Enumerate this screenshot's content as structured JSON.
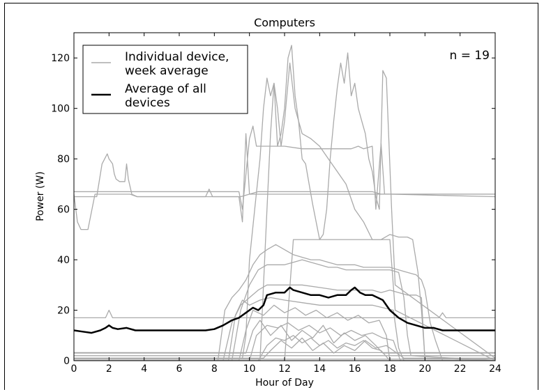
{
  "chart_data": {
    "type": "line",
    "title": "Computers",
    "xlabel": "Hour of Day",
    "ylabel": "Power (W)",
    "xlim": [
      0,
      24
    ],
    "ylim": [
      0,
      130
    ],
    "xticks": [
      0,
      2,
      4,
      6,
      8,
      10,
      12,
      14,
      16,
      18,
      20,
      22,
      24
    ],
    "yticks": [
      0,
      20,
      40,
      60,
      80,
      100,
      120
    ],
    "grid": false,
    "legend_position": "top-left",
    "annotation": "n = 19",
    "legend": [
      {
        "label_lines": [
          "Individual device,",
          " week average"
        ],
        "color": "#aaaaaa",
        "width": 1.5
      },
      {
        "label_lines": [
          "Average of all",
          " devices"
        ],
        "color": "#000000",
        "width": 2.5
      }
    ],
    "individual_color": "#aaaaaa",
    "average_color": "#000000",
    "series": [
      {
        "x": [
          0,
          0.3,
          0.5,
          0.9,
          1.1,
          1.3,
          1.6,
          1.9,
          2.0,
          2.1,
          2.2,
          2.3,
          2.4,
          2.6,
          2.9,
          3.0,
          3.1,
          3.3,
          3.6,
          7.5,
          8.0,
          9.0,
          9.4,
          9.6,
          9.8,
          10.0,
          10.5,
          12,
          14,
          16,
          17.0,
          17.3,
          17.5,
          17.8,
          22,
          24
        ],
        "y": [
          65,
          65,
          65,
          65,
          65,
          65,
          78,
          82,
          80,
          79,
          78,
          74,
          72,
          71,
          71,
          78,
          72,
          66,
          65,
          65,
          65,
          65,
          65,
          55,
          90,
          66,
          66,
          66,
          66,
          66,
          66,
          66,
          66,
          66,
          66,
          66
        ]
      },
      {
        "x": [
          0,
          0.2,
          0.4,
          0.8,
          1.2,
          1.6,
          2.0,
          2.4,
          2.8,
          3.2,
          3.6,
          4,
          7.5,
          7.7,
          7.9,
          8,
          9.5,
          10.5,
          11,
          14,
          17,
          17.5,
          18,
          24
        ],
        "y": [
          66,
          55,
          52,
          52,
          66,
          66,
          66,
          66,
          66,
          66,
          65,
          65,
          65,
          68,
          65,
          65,
          65,
          67,
          67,
          67,
          67,
          66,
          66,
          65
        ]
      },
      {
        "x": [
          0,
          9.4,
          9.6,
          10,
          10.2,
          10.4,
          11,
          12,
          13,
          14,
          15,
          15.8,
          16.2,
          16.5,
          17.0,
          17.2,
          17.5,
          17.7,
          18,
          24
        ],
        "y": [
          67,
          67,
          60,
          88,
          93,
          85,
          85,
          85,
          84,
          84,
          84,
          84,
          85,
          84,
          85,
          60,
          86,
          66,
          66,
          66
        ]
      },
      {
        "x": [
          0,
          9.6,
          9.8,
          10.0,
          10.3,
          10.6,
          10.8,
          11.0,
          11.2,
          11.4,
          11.6,
          11.8,
          12.0,
          12.2,
          12.4,
          12.6,
          12.8,
          13.0,
          13.2,
          13.4,
          13.6,
          13.8,
          14.0,
          14.2,
          14.4,
          14.6,
          14.8,
          15.0,
          15.2,
          15.4,
          15.6,
          15.8,
          16.0,
          16.2,
          16.4,
          16.6,
          16.8,
          17.0,
          17.2,
          17.4,
          17.6,
          17.8,
          18.1,
          18.3,
          24
        ],
        "y": [
          1,
          1,
          10,
          40,
          60,
          80,
          100,
          112,
          105,
          110,
          85,
          90,
          100,
          120,
          125,
          105,
          95,
          80,
          78,
          70,
          62,
          55,
          48,
          50,
          60,
          80,
          95,
          108,
          118,
          110,
          122,
          105,
          110,
          100,
          95,
          90,
          80,
          75,
          65,
          60,
          115,
          112,
          60,
          30,
          1
        ]
      },
      {
        "x": [
          0,
          10.6,
          10.8,
          11.0,
          11.2,
          11.4,
          11.6,
          11.8,
          12.0,
          12.3,
          12.6,
          13.0,
          13.5,
          14.0,
          14.5,
          15.0,
          15.5,
          16.0,
          16.5,
          17.0,
          17.5,
          17.8,
          18.0,
          18.3,
          24
        ],
        "y": [
          0,
          0,
          30,
          60,
          90,
          110,
          100,
          85,
          95,
          118,
          100,
          90,
          88,
          85,
          80,
          75,
          70,
          60,
          55,
          48,
          48,
          48,
          48,
          20,
          0
        ]
      },
      {
        "x": [
          0,
          12.0,
          12.5,
          13.0,
          13.5,
          14.0,
          14.5,
          15.0,
          15.5,
          15.8,
          16.0,
          16.5,
          17.0,
          17.5,
          18.0,
          18.5,
          19.0,
          19.3,
          19.6,
          19.8,
          20.0,
          24
        ],
        "y": [
          0,
          0,
          48,
          48,
          48,
          48,
          48,
          48,
          48,
          48,
          48,
          48,
          48,
          48,
          50,
          49,
          49,
          48,
          35,
          20,
          1,
          0
        ]
      },
      {
        "x": [
          0,
          8.2,
          8.6,
          9.0,
          9.4,
          9.8,
          10.2,
          10.6,
          11.0,
          11.5,
          12.0,
          12.5,
          13.0,
          13.5,
          14.0,
          14.5,
          15.0,
          15.5,
          16.0,
          16.5,
          17.0,
          17.5,
          18.0,
          18.5,
          19.0,
          19.5,
          19.8,
          20.0,
          20.3,
          20.6,
          20.8,
          21.0,
          24
        ],
        "y": [
          0,
          0,
          20,
          25,
          28,
          32,
          38,
          42,
          44,
          46,
          44,
          42,
          41,
          40,
          40,
          39,
          38,
          38,
          38,
          37,
          37,
          37,
          37,
          36,
          35,
          34,
          32,
          28,
          15,
          8,
          4,
          0,
          0
        ]
      },
      {
        "x": [
          0,
          9.0,
          9.5,
          10.0,
          10.5,
          11.0,
          11.5,
          12.0,
          12.5,
          13.0,
          13.5,
          14.0,
          14.5,
          15.0,
          15.5,
          16.0,
          16.5,
          17.0,
          17.5,
          18.0,
          18.5,
          18.8,
          19.0,
          19.2,
          24
        ],
        "y": [
          0,
          0,
          20,
          30,
          36,
          38,
          38,
          38,
          39,
          40,
          39,
          38,
          37,
          37,
          36,
          36,
          36,
          36,
          36,
          36,
          35,
          25,
          10,
          2,
          0
        ]
      },
      {
        "x": [
          0,
          8.5,
          9.0,
          9.5,
          10.0,
          10.5,
          11.0,
          12.0,
          13.0,
          14.0,
          15.0,
          16.0,
          17.0,
          17.5,
          18.0,
          18.5,
          19.0,
          19.5,
          19.8,
          20,
          24
        ],
        "y": [
          0,
          0,
          15,
          22,
          25,
          28,
          30,
          30,
          30,
          29,
          28,
          28,
          28,
          27,
          28,
          27,
          26,
          26,
          25,
          0,
          0
        ]
      },
      {
        "x": [
          0,
          8.8,
          9.2,
          9.6,
          10.0,
          10.6,
          11.2,
          12.0,
          13.0,
          14.0,
          15.0,
          16.0,
          17.0,
          17.6,
          18.2,
          18.5,
          18.8,
          24
        ],
        "y": [
          0,
          0,
          18,
          24,
          22,
          24,
          25,
          24,
          23,
          22,
          22,
          22,
          22,
          21,
          20,
          5,
          0,
          0
        ]
      },
      {
        "x": [
          0,
          9.4,
          9.8,
          10.2,
          10.8,
          11.4,
          12.0,
          12.6,
          13.2,
          13.8,
          14.4,
          15.0,
          15.6,
          16.2,
          16.8,
          17.4,
          17.8,
          18.0,
          24
        ],
        "y": [
          0,
          0,
          12,
          20,
          18,
          22,
          19,
          21,
          18,
          20,
          17,
          19,
          16,
          18,
          15,
          16,
          10,
          0,
          0
        ]
      },
      {
        "x": [
          0,
          10.0,
          10.4,
          11.0,
          11.6,
          12.2,
          12.8,
          13.4,
          14.0,
          14.6,
          15.2,
          15.8,
          16.4,
          17.0,
          17.6,
          18.2,
          18.6,
          24
        ],
        "y": [
          0,
          0,
          10,
          14,
          13,
          15,
          12,
          14,
          11,
          13,
          10,
          12,
          10,
          11,
          9,
          8,
          0,
          0
        ]
      },
      {
        "x": [
          0,
          10.5,
          11.0,
          11.5,
          12.0,
          12.5,
          13.0,
          13.5,
          14.0,
          14.5,
          15.0,
          15.5,
          16.0,
          16.5,
          17.0,
          17.5,
          18.0,
          24
        ],
        "y": [
          0,
          0,
          6,
          9,
          8,
          10,
          7,
          9,
          6,
          8,
          5,
          7,
          6,
          8,
          5,
          4,
          0,
          0
        ]
      },
      {
        "x": [
          0,
          9.8,
          10.2,
          10.6,
          11.2,
          11.8,
          12.4,
          13.0,
          13.6,
          14.2,
          14.8,
          15.4,
          16.0,
          16.6,
          17.2,
          17.6,
          24
        ],
        "y": [
          3,
          3,
          12,
          16,
          10,
          14,
          8,
          12,
          9,
          14,
          7,
          11,
          8,
          10,
          6,
          3,
          3
        ]
      },
      {
        "x": [
          0,
          10.8,
          11.2,
          11.8,
          12.4,
          13.0,
          13.6,
          14.2,
          14.8,
          15.4,
          16.0,
          16.6,
          17.2,
          17.8,
          18.4,
          18.8,
          24
        ],
        "y": [
          1,
          1,
          4,
          8,
          5,
          9,
          4,
          7,
          3,
          6,
          4,
          8,
          5,
          6,
          3,
          1,
          1
        ]
      },
      {
        "x": [
          0,
          1.8,
          2.0,
          2.2,
          9.0,
          9.4,
          10.0,
          12.0,
          14.0,
          16.0,
          18.0,
          20.0,
          20.8,
          21.0,
          21.2,
          24
        ],
        "y": [
          17,
          17,
          20,
          17,
          17,
          17,
          17,
          17,
          17,
          17,
          17,
          17,
          17,
          19,
          17,
          17
        ]
      },
      {
        "x": [
          0,
          24
        ],
        "y": [
          3.2,
          3.2
        ]
      },
      {
        "x": [
          0,
          24
        ],
        "y": [
          2.0,
          2.0
        ]
      },
      {
        "x": [
          0,
          24
        ],
        "y": [
          0.6,
          0.6
        ]
      },
      {
        "x": [
          0,
          0.5,
          1.0,
          1.5,
          1.8,
          2.0,
          2.2,
          2.5,
          3.0,
          3.5,
          4,
          6,
          7.5,
          8,
          8.5,
          9.0,
          9.4,
          9.8,
          10.0,
          10.2,
          10.5,
          10.8,
          11.0,
          11.5,
          12.0,
          12.3,
          12.5,
          13.0,
          13.5,
          14.0,
          14.5,
          15.0,
          15.5,
          15.8,
          16.0,
          16.3,
          16.6,
          17.0,
          17.3,
          17.6,
          18.0,
          18.5,
          19.0,
          19.5,
          20.0,
          20.5,
          21.0,
          22,
          24
        ],
        "y": [
          12,
          11.5,
          11,
          12,
          13,
          14,
          13,
          12.5,
          13,
          12,
          12,
          12,
          12,
          12.5,
          14,
          16,
          17,
          19,
          20,
          21,
          20,
          22,
          26,
          27,
          27,
          29,
          28,
          27,
          26,
          26,
          25,
          26,
          26,
          28,
          29,
          27,
          26,
          26,
          25,
          24,
          20,
          17,
          15,
          14,
          13,
          13,
          12,
          12,
          12
        ],
        "avg": true
      }
    ]
  }
}
